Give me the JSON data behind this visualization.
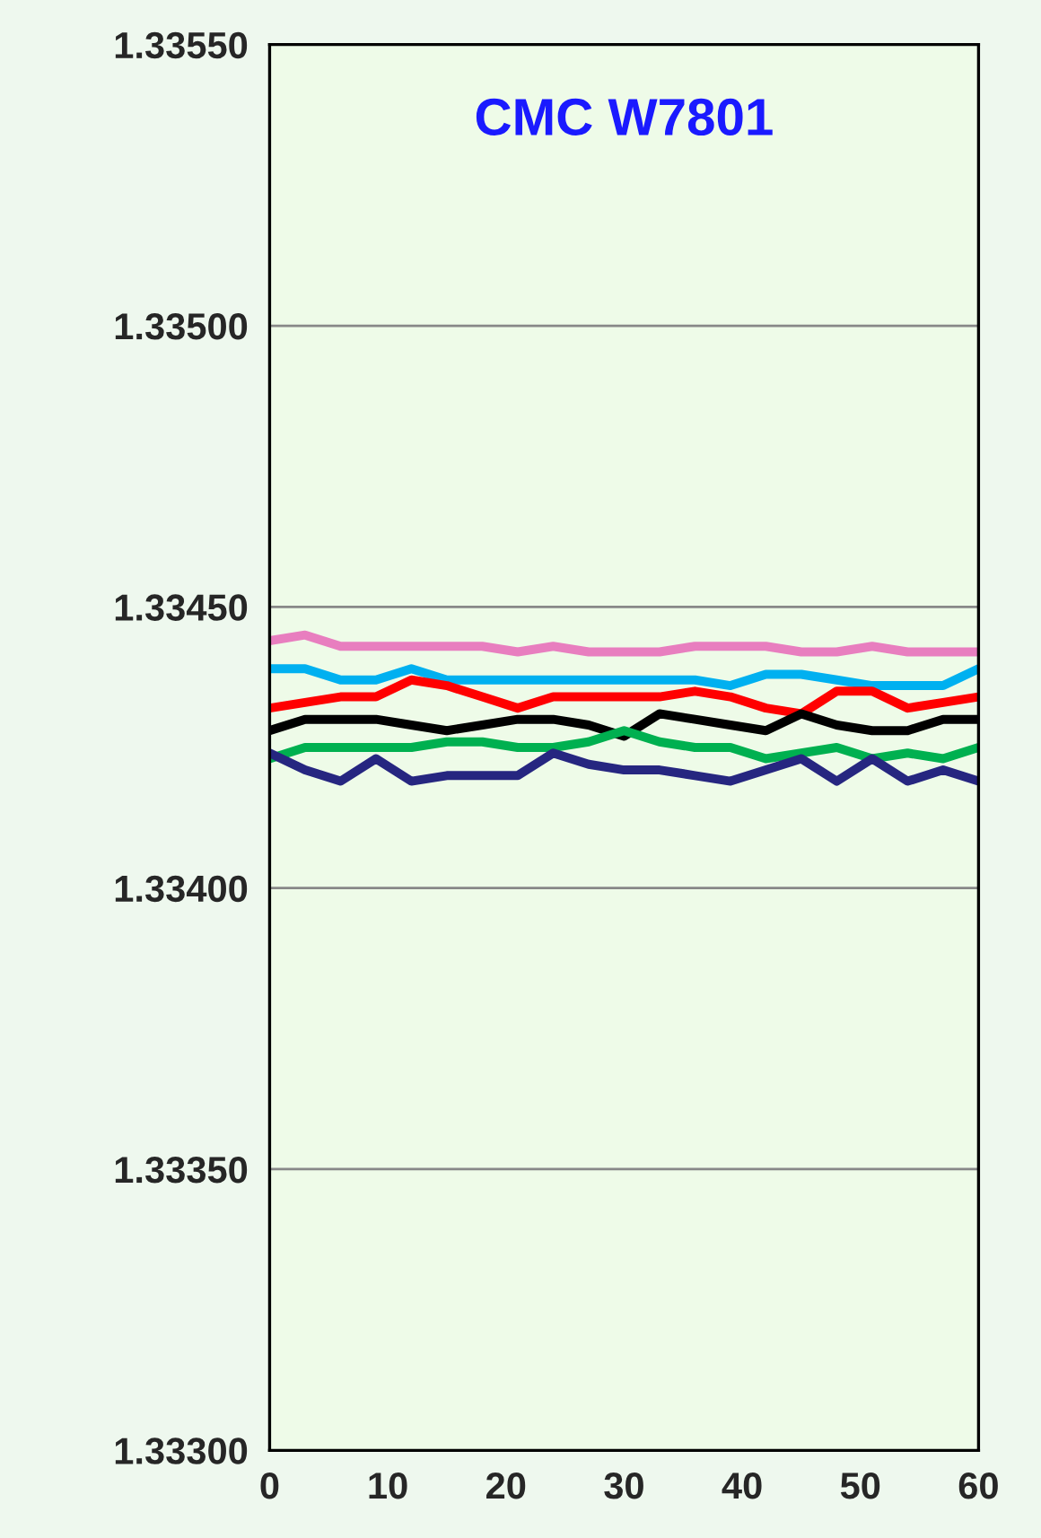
{
  "chart_data": {
    "type": "line",
    "title": "CMC W7801",
    "x": [
      0,
      3,
      6,
      9,
      12,
      15,
      18,
      21,
      24,
      27,
      30,
      33,
      36,
      39,
      42,
      45,
      48,
      51,
      54,
      57,
      60
    ],
    "series": [
      {
        "color": "#e87ebf",
        "values": [
          1.33444,
          1.33445,
          1.33443,
          1.33443,
          1.33443,
          1.33443,
          1.33443,
          1.33442,
          1.33443,
          1.33442,
          1.33442,
          1.33442,
          1.33443,
          1.33443,
          1.33443,
          1.33442,
          1.33442,
          1.33443,
          1.33442,
          1.33442,
          1.33442
        ]
      },
      {
        "color": "#00b0f0",
        "values": [
          1.33439,
          1.33439,
          1.33437,
          1.33437,
          1.33439,
          1.33437,
          1.33437,
          1.33437,
          1.33437,
          1.33437,
          1.33437,
          1.33437,
          1.33437,
          1.33436,
          1.33438,
          1.33438,
          1.33437,
          1.33436,
          1.33436,
          1.33436,
          1.33439
        ]
      },
      {
        "color": "#ff0000",
        "values": [
          1.33432,
          1.33433,
          1.33434,
          1.33434,
          1.33437,
          1.33436,
          1.33434,
          1.33432,
          1.33434,
          1.33434,
          1.33434,
          1.33434,
          1.33435,
          1.33434,
          1.33432,
          1.33431,
          1.33435,
          1.33435,
          1.33432,
          1.33433,
          1.33434
        ]
      },
      {
        "color": "#000000",
        "values": [
          1.33428,
          1.3343,
          1.3343,
          1.3343,
          1.33429,
          1.33428,
          1.33429,
          1.3343,
          1.3343,
          1.33429,
          1.33427,
          1.33431,
          1.3343,
          1.33429,
          1.33428,
          1.33431,
          1.33429,
          1.33428,
          1.33428,
          1.3343,
          1.3343
        ]
      },
      {
        "color": "#00b050",
        "values": [
          1.33423,
          1.33425,
          1.33425,
          1.33425,
          1.33425,
          1.33426,
          1.33426,
          1.33425,
          1.33425,
          1.33426,
          1.33428,
          1.33426,
          1.33425,
          1.33425,
          1.33423,
          1.33424,
          1.33425,
          1.33423,
          1.33424,
          1.33423,
          1.33425
        ]
      },
      {
        "color": "#262680",
        "values": [
          1.33424,
          1.33421,
          1.33419,
          1.33423,
          1.33419,
          1.3342,
          1.3342,
          1.3342,
          1.33424,
          1.33422,
          1.33421,
          1.33421,
          1.3342,
          1.33419,
          1.33421,
          1.33423,
          1.33419,
          1.33423,
          1.33419,
          1.33421,
          1.33419
        ]
      }
    ],
    "xlim": [
      0,
      60
    ],
    "xticks": [
      0,
      10,
      20,
      30,
      40,
      50,
      60
    ],
    "ylim": [
      1.333,
      1.3355
    ],
    "yticks": [
      {
        "value": 1.333,
        "label": "1.33300"
      },
      {
        "value": 1.3335,
        "label": "1.33350"
      },
      {
        "value": 1.334,
        "label": "1.33400"
      },
      {
        "value": 1.3345,
        "label": "1.33450"
      },
      {
        "value": 1.335,
        "label": "1.33500"
      },
      {
        "value": 1.3355,
        "label": "1.33550"
      }
    ],
    "grid": "y",
    "line_style": "solid",
    "marker": "none"
  }
}
